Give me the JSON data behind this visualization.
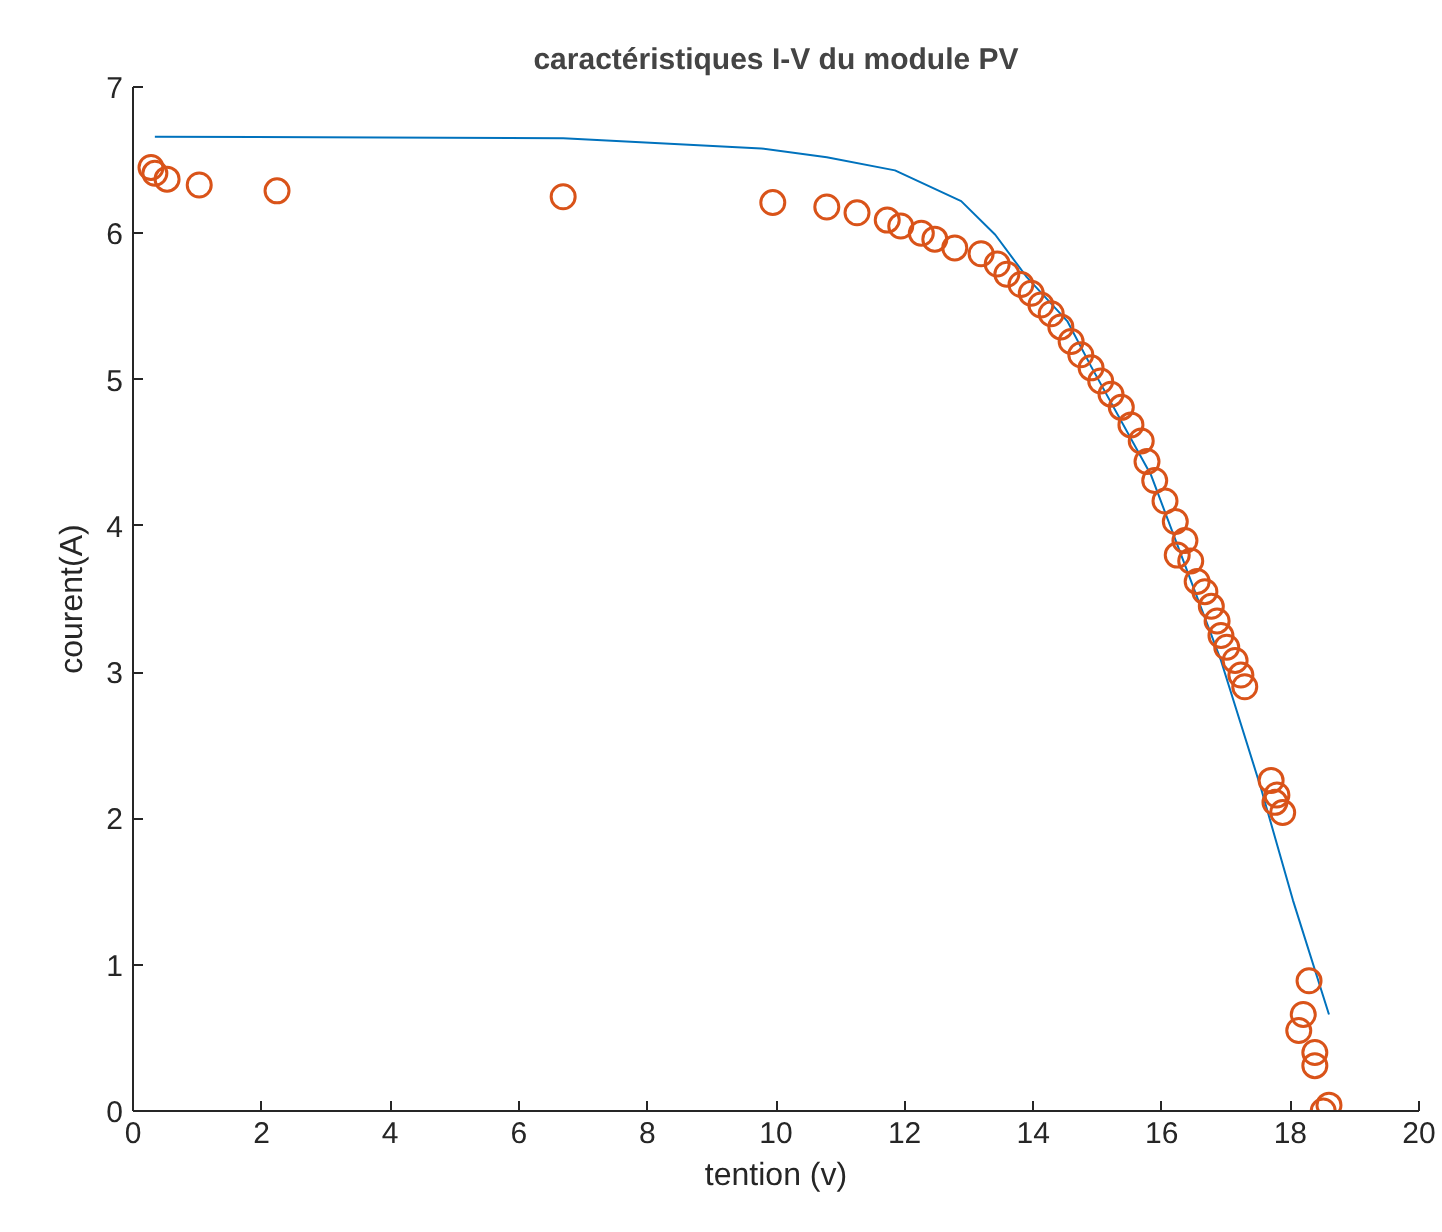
{
  "chart_data": {
    "type": "scatter",
    "title": "caractéristiques I-V du module PV",
    "xlabel": "tention (v)",
    "ylabel": "courent(A)",
    "xlim": [
      0,
      20
    ],
    "ylim": [
      0,
      7
    ],
    "xticks": [
      0,
      2,
      4,
      6,
      8,
      10,
      12,
      14,
      16,
      18,
      20
    ],
    "yticks": [
      0,
      1,
      2,
      3,
      4,
      5,
      6,
      7
    ],
    "grid": false,
    "series": [
      {
        "type": "line",
        "color": "#0072bd",
        "line_style": "solid",
        "x": [
          0.34,
          6.69,
          9.77,
          10.79,
          11.85,
          12.88,
          13.41,
          13.9,
          14.53,
          14.9,
          15.83,
          16.92,
          17.54,
          18.04,
          18.6
        ],
        "values": [
          6.66,
          6.65,
          6.58,
          6.52,
          6.43,
          6.22,
          5.99,
          5.7,
          5.4,
          5.09,
          4.35,
          3.08,
          2.21,
          1.44,
          0.66
        ]
      },
      {
        "color": "#d95319",
        "marker": "circle",
        "x": [
          0.28,
          0.34,
          0.53,
          1.03,
          2.24,
          6.69,
          9.95,
          10.79,
          11.26,
          11.73,
          11.94,
          12.26,
          12.47,
          12.78,
          13.19,
          13.44,
          13.59,
          13.81,
          13.97,
          14.12,
          14.28,
          14.43,
          14.59,
          14.74,
          14.9,
          15.05,
          15.21,
          15.37,
          15.52,
          15.68,
          15.77,
          15.89,
          16.05,
          16.21,
          16.36,
          16.24,
          16.45,
          16.55,
          16.67,
          16.77,
          16.86,
          16.92,
          17.01,
          17.14,
          17.23,
          17.29,
          17.7,
          17.79,
          17.76,
          17.88,
          18.29,
          18.2,
          18.13,
          18.38,
          18.38,
          18.6,
          18.51
        ],
        "values": [
          6.45,
          6.41,
          6.37,
          6.33,
          6.29,
          6.25,
          6.21,
          6.18,
          6.14,
          6.09,
          6.05,
          6.0,
          5.96,
          5.9,
          5.86,
          5.79,
          5.72,
          5.65,
          5.59,
          5.51,
          5.45,
          5.36,
          5.26,
          5.17,
          5.08,
          4.99,
          4.9,
          4.81,
          4.69,
          4.58,
          4.44,
          4.31,
          4.17,
          4.03,
          3.9,
          3.8,
          3.76,
          3.62,
          3.55,
          3.45,
          3.35,
          3.25,
          3.17,
          3.08,
          2.98,
          2.9,
          2.26,
          2.16,
          2.11,
          2.04,
          0.89,
          0.66,
          0.55,
          0.4,
          0.31,
          0.04,
          0.0
        ]
      }
    ]
  }
}
